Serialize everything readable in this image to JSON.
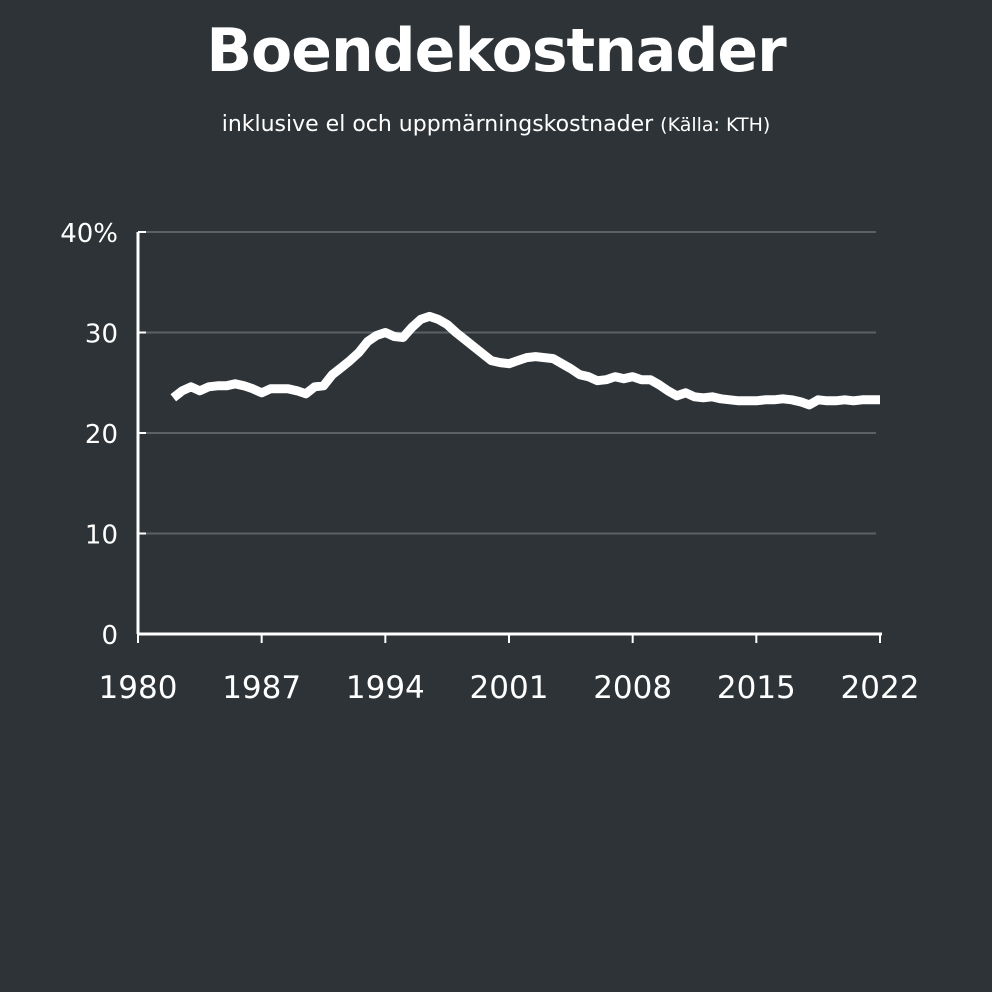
{
  "header": {
    "title": "Boendekostnader",
    "subtitle": "inklusive el och uppmärningskostnader",
    "source": "(Källa: KTH)"
  },
  "colors": {
    "background": "#2d3336",
    "line": "#ffffff",
    "grid": "#5a6266",
    "axis": "#ffffff",
    "text": "#ffffff"
  },
  "chart_data": {
    "type": "line",
    "title": "Boendekostnader",
    "subtitle": "inklusive el och uppmärningskostnader (Källa: KTH)",
    "xlabel": "",
    "ylabel": "",
    "xlim": [
      1980,
      2022
    ],
    "ylim": [
      0,
      40
    ],
    "x_ticks": [
      1980,
      1987,
      1994,
      2001,
      2008,
      2015,
      2022
    ],
    "y_ticks": [
      {
        "value": 0,
        "label": "0"
      },
      {
        "value": 10,
        "label": "10"
      },
      {
        "value": 20,
        "label": "20"
      },
      {
        "value": 30,
        "label": "30"
      },
      {
        "value": 40,
        "label": "40%"
      }
    ],
    "grid": true,
    "legend": "none",
    "series": [
      {
        "x": [
          1982,
          1982.5,
          1983,
          1983.5,
          1984,
          1984.5,
          1985,
          1985.5,
          1986,
          1986.5,
          1987,
          1987.5,
          1988,
          1988.5,
          1989,
          1989.5,
          1990,
          1990.5,
          1991,
          1991.5,
          1992,
          1992.5,
          1993,
          1993.5,
          1994,
          1994.5,
          1995,
          1995.5,
          1996,
          1996.5,
          1997,
          1997.5,
          1998,
          1998.5,
          1999,
          1999.5,
          2000,
          2000.5,
          2001,
          2001.5,
          2002,
          2002.5,
          2003,
          2003.5,
          2004,
          2004.5,
          2005,
          2005.5,
          2006,
          2006.5,
          2007,
          2007.5,
          2008,
          2008.5,
          2009,
          2009.5,
          2010,
          2010.5,
          2011,
          2011.5,
          2012,
          2012.5,
          2013,
          2013.5,
          2014,
          2014.5,
          2015,
          2015.5,
          2016,
          2016.5,
          2017,
          2017.5,
          2018,
          2018.5,
          2019,
          2019.5,
          2020,
          2020.5,
          2021,
          2021.5,
          2022
        ],
        "values": [
          23.5,
          24.2,
          24.6,
          24.2,
          24.6,
          24.7,
          24.7,
          24.9,
          24.7,
          24.4,
          24.0,
          24.4,
          24.4,
          24.4,
          24.2,
          23.9,
          24.6,
          24.7,
          25.8,
          26.5,
          27.2,
          28.0,
          29.1,
          29.7,
          30.0,
          29.6,
          29.5,
          30.5,
          31.3,
          31.6,
          31.3,
          30.8,
          30.0,
          29.3,
          28.6,
          27.9,
          27.2,
          27.0,
          26.9,
          27.2,
          27.5,
          27.6,
          27.5,
          27.4,
          26.9,
          26.4,
          25.8,
          25.6,
          25.2,
          25.3,
          25.6,
          25.4,
          25.6,
          25.3,
          25.3,
          24.8,
          24.2,
          23.7,
          24.0,
          23.6,
          23.5,
          23.6,
          23.4,
          23.3,
          23.2,
          23.2,
          23.2,
          23.3,
          23.3,
          23.4,
          23.3,
          23.1,
          22.8,
          23.3,
          23.2,
          23.2,
          23.3,
          23.2,
          23.3,
          23.3,
          23.3
        ]
      }
    ]
  }
}
